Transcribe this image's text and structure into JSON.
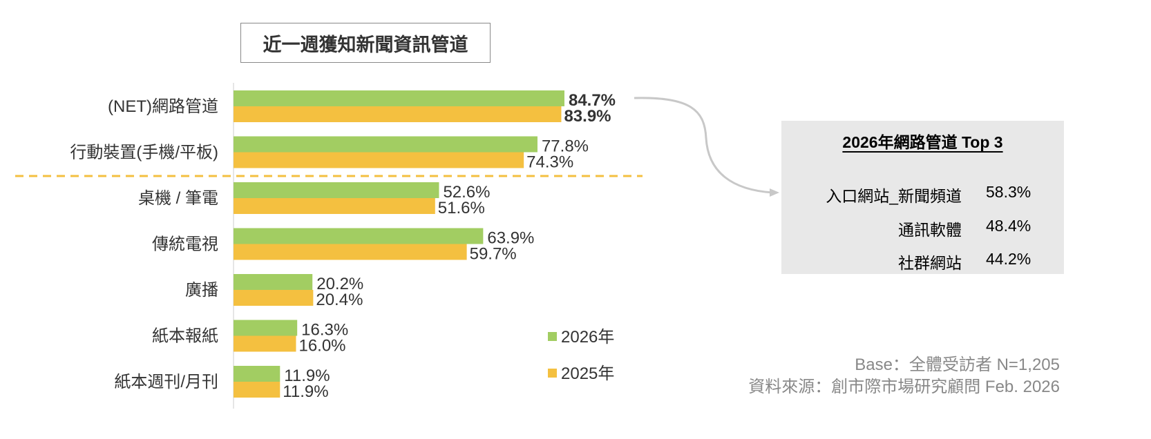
{
  "chart_data": {
    "type": "bar",
    "orientation": "horizontal",
    "title": "近一週獲知新聞資訊管道",
    "categories": [
      "(NET)網路管道",
      "行動裝置(手機/平板)",
      "桌機 / 筆電",
      "傳統電視",
      "廣播",
      "紙本報紙",
      "紙本週刊/月刊"
    ],
    "series": [
      {
        "name": "2026年",
        "color": "#a2cd62",
        "values": [
          84.7,
          77.8,
          52.6,
          63.9,
          20.2,
          16.3,
          11.9
        ]
      },
      {
        "name": "2025年",
        "color": "#f4c040",
        "values": [
          83.9,
          74.3,
          51.6,
          59.7,
          20.4,
          16.0,
          11.9
        ]
      }
    ],
    "value_suffix": "%",
    "bold_category_index": 0,
    "divider_after_index": 1,
    "legend_position": "bottom-right",
    "xlim": [
      0,
      100
    ],
    "grid": false
  },
  "top3": {
    "title": "2026年網路管道 Top 3",
    "items": [
      {
        "label": "入口網站_新聞頻道",
        "value": "58.3%"
      },
      {
        "label": "通訊軟體",
        "value": "48.4%"
      },
      {
        "label": "社群網站",
        "value": "44.2%"
      }
    ]
  },
  "footer": {
    "base": "Base：全體受訪者 N=1,205",
    "source": "資料來源：創市際市場研究顧問 Feb. 2026"
  }
}
